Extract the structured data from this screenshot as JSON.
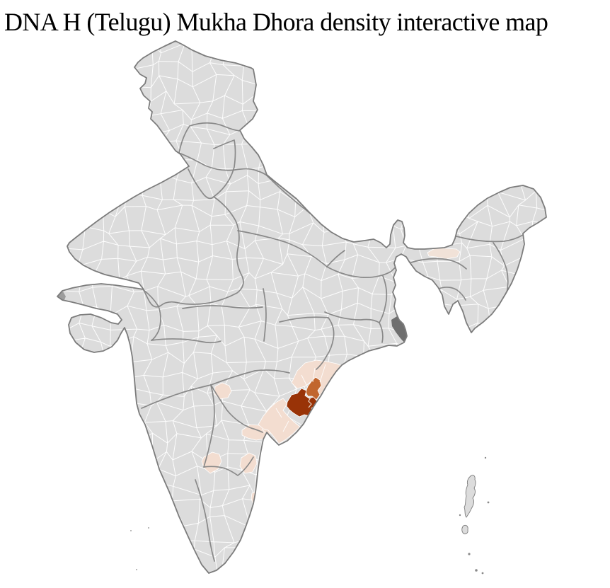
{
  "title": "DNA H (Telugu) Mukha Dhora density interactive map",
  "map": {
    "label": "India district-level density choropleth",
    "colors": {
      "sea_background": "#ffffff",
      "land_base": "#dcdcdc",
      "district_border": "#ffffff",
      "state_border": "#848484",
      "country_outline": "#7c7c7c",
      "density_high": "#993307",
      "density_medium": "#c1662e",
      "density_low": "#f3ddd0",
      "density_faint": "#f1e2d8",
      "shaded_dark_gray": "#6f6f6f",
      "shaded_medium_gray": "#9d9d9d",
      "island_speck": "#8a8a8a"
    },
    "regions": [
      {
        "id": "visakhapatnam",
        "level": "density_high"
      },
      {
        "id": "vizianagaram-strip",
        "level": "density_medium"
      },
      {
        "id": "south-odisha-coast",
        "level": "density_low"
      },
      {
        "id": "godavari-coastal-belt",
        "level": "density_low"
      },
      {
        "id": "east-godavari-delta",
        "level": "density_low"
      },
      {
        "id": "telangana-district",
        "level": "density_low"
      },
      {
        "id": "kurnool-area",
        "level": "density_low"
      },
      {
        "id": "prakasam-area",
        "level": "density_low"
      },
      {
        "id": "nellore-coast",
        "level": "density_low"
      },
      {
        "id": "central-assam",
        "level": "density_faint"
      },
      {
        "id": "sundarbans",
        "level": "shaded_dark_gray"
      },
      {
        "id": "kutch-west-tip",
        "level": "shaded_medium_gray"
      }
    ]
  }
}
